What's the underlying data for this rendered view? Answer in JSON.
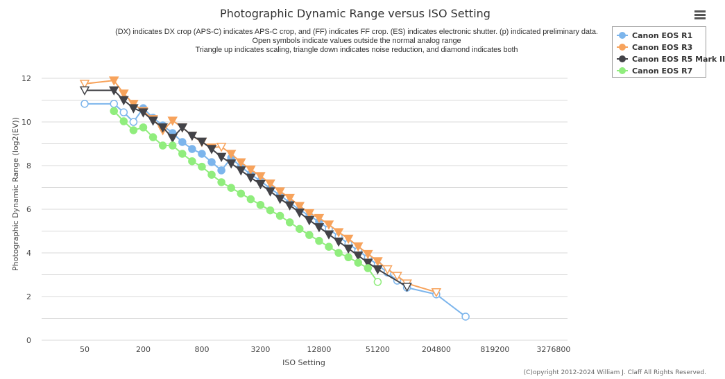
{
  "chart_data": {
    "type": "line",
    "title": "Photographic Dynamic Range versus ISO Setting",
    "subtitle": [
      "(DX) indicates DX crop (APS-C) indicates APS-C crop, and (FF) indicates FF crop. (ES) indicates electronic shutter. (p) indicated preliminary data.",
      "Open symbols indicate values outside the normal analog range",
      "Triangle up indicates scaling, triangle down indicates noise reduction, and diamond indicates both"
    ],
    "xlabel": "ISO Setting",
    "ylabel": "Photographic Dynamic Range (log2(EV))",
    "x_scale": "log2",
    "xlim": [
      25,
      4000000
    ],
    "ylim": [
      0,
      13
    ],
    "x_ticks": [
      "50",
      "200",
      "800",
      "3200",
      "12800",
      "51200",
      "204800",
      "819200",
      "3276800"
    ],
    "y_ticks": [
      "0",
      "2",
      "4",
      "6",
      "8",
      "10",
      "12"
    ],
    "grid": true,
    "legend_position": "top-right",
    "series": [
      {
        "name": "Canon EOS R1",
        "color": "#7cb5ec",
        "marker": "circle",
        "points": [
          [
            50,
            10.83,
            0
          ],
          [
            100,
            10.83,
            0
          ],
          [
            125,
            10.44,
            0
          ],
          [
            160,
            10.0,
            0
          ],
          [
            200,
            10.63,
            1
          ],
          [
            250,
            10.19,
            1
          ],
          [
            320,
            9.84,
            1
          ],
          [
            400,
            9.49,
            1
          ],
          [
            500,
            9.08,
            1
          ],
          [
            640,
            8.76,
            1
          ],
          [
            800,
            8.54,
            1
          ],
          [
            1000,
            8.16,
            1
          ],
          [
            1250,
            7.78,
            1
          ],
          [
            1600,
            8.35,
            1
          ],
          [
            2000,
            7.95,
            1
          ],
          [
            2500,
            7.6,
            1
          ],
          [
            3200,
            7.3,
            1
          ],
          [
            4000,
            6.95,
            1
          ],
          [
            5000,
            6.65,
            1
          ],
          [
            6400,
            6.3,
            1
          ],
          [
            8000,
            5.98,
            1
          ],
          [
            10000,
            5.7,
            1
          ],
          [
            12800,
            5.43,
            1
          ],
          [
            16000,
            5.1,
            0
          ],
          [
            20000,
            4.75,
            0
          ],
          [
            25600,
            4.42,
            0
          ],
          [
            32000,
            4.1,
            0
          ],
          [
            40000,
            3.78,
            0
          ],
          [
            51200,
            3.45,
            0
          ],
          [
            64000,
            3.1,
            0
          ],
          [
            80000,
            2.73,
            0
          ],
          [
            102400,
            2.41,
            0
          ],
          [
            204800,
            2.1,
            0
          ],
          [
            409600,
            1.08,
            0
          ]
        ]
      },
      {
        "name": "Canon EOS R3",
        "color": "#f7a35c",
        "marker": "triangle-down",
        "points": [
          [
            50,
            11.75,
            0
          ],
          [
            100,
            11.9,
            1
          ],
          [
            125,
            11.3,
            1
          ],
          [
            160,
            10.83,
            1
          ],
          [
            200,
            10.5,
            1
          ],
          [
            250,
            10.13,
            1
          ],
          [
            320,
            9.62,
            1
          ],
          [
            400,
            10.06,
            1
          ],
          [
            500,
            9.75,
            1
          ],
          [
            640,
            9.37,
            1
          ],
          [
            800,
            9.08,
            1
          ],
          [
            1000,
            8.83,
            1
          ],
          [
            1250,
            8.86,
            0
          ],
          [
            1600,
            8.54,
            1
          ],
          [
            2000,
            8.15,
            1
          ],
          [
            2500,
            7.82,
            1
          ],
          [
            3200,
            7.52,
            1
          ],
          [
            4000,
            7.18,
            1
          ],
          [
            5000,
            6.82,
            1
          ],
          [
            6400,
            6.52,
            1
          ],
          [
            8000,
            6.15,
            1
          ],
          [
            10000,
            5.82,
            1
          ],
          [
            12800,
            5.6,
            1
          ],
          [
            16000,
            5.3,
            1
          ],
          [
            20000,
            4.95,
            1
          ],
          [
            25600,
            4.65,
            1
          ],
          [
            32000,
            4.3,
            1
          ],
          [
            40000,
            3.95,
            1
          ],
          [
            51200,
            3.62,
            1
          ],
          [
            64000,
            3.25,
            0
          ],
          [
            80000,
            2.95,
            0
          ],
          [
            102400,
            2.6,
            0
          ],
          [
            204800,
            2.2,
            0
          ]
        ]
      },
      {
        "name": "Canon EOS R5 Mark II",
        "color": "#434348",
        "marker": "triangle-down",
        "points": [
          [
            50,
            11.45,
            0
          ],
          [
            100,
            11.45,
            1
          ],
          [
            125,
            11.0,
            1
          ],
          [
            160,
            10.63,
            1
          ],
          [
            200,
            10.44,
            1
          ],
          [
            250,
            10.06,
            1
          ],
          [
            320,
            9.75,
            1
          ],
          [
            400,
            9.27,
            1
          ],
          [
            500,
            9.75,
            1
          ],
          [
            640,
            9.37,
            1
          ],
          [
            800,
            9.1,
            1
          ],
          [
            1000,
            8.76,
            1
          ],
          [
            1250,
            8.4,
            1
          ],
          [
            1600,
            8.1,
            1
          ],
          [
            2000,
            7.78,
            1
          ],
          [
            2500,
            7.45,
            1
          ],
          [
            3200,
            7.15,
            1
          ],
          [
            4000,
            6.82,
            1
          ],
          [
            5000,
            6.48,
            1
          ],
          [
            6400,
            6.18,
            1
          ],
          [
            8000,
            5.85,
            1
          ],
          [
            10000,
            5.5,
            1
          ],
          [
            12800,
            5.18,
            1
          ],
          [
            16000,
            4.85,
            1
          ],
          [
            20000,
            4.52,
            1
          ],
          [
            25600,
            4.2,
            1
          ],
          [
            32000,
            3.88,
            1
          ],
          [
            40000,
            3.55,
            1
          ],
          [
            51200,
            3.25,
            1
          ],
          [
            102400,
            2.45,
            0
          ]
        ]
      },
      {
        "name": "Canon EOS R7",
        "color": "#90ed7d",
        "marker": "circle",
        "points": [
          [
            100,
            10.5,
            1
          ],
          [
            125,
            10.03,
            1
          ],
          [
            160,
            9.62,
            1
          ],
          [
            200,
            9.75,
            1
          ],
          [
            250,
            9.3,
            1
          ],
          [
            320,
            8.92,
            1
          ],
          [
            400,
            8.92,
            1
          ],
          [
            500,
            8.54,
            1
          ],
          [
            640,
            8.2,
            1
          ],
          [
            800,
            7.95,
            1
          ],
          [
            1000,
            7.58,
            1
          ],
          [
            1250,
            7.24,
            1
          ],
          [
            1600,
            6.98,
            1
          ],
          [
            2000,
            6.72,
            1
          ],
          [
            2500,
            6.46,
            1
          ],
          [
            3200,
            6.2,
            1
          ],
          [
            4000,
            5.95,
            1
          ],
          [
            5000,
            5.7,
            1
          ],
          [
            6400,
            5.4,
            1
          ],
          [
            8000,
            5.1,
            1
          ],
          [
            10000,
            4.82,
            1
          ],
          [
            12800,
            4.55,
            1
          ],
          [
            16000,
            4.28,
            1
          ],
          [
            20000,
            4.0,
            1
          ],
          [
            25600,
            3.8,
            1
          ],
          [
            32000,
            3.55,
            1
          ],
          [
            40000,
            3.3,
            1
          ],
          [
            51200,
            2.67,
            0
          ]
        ]
      }
    ]
  },
  "copyright": "(C)opyright 2012-2024 William J. Claff All Rights Reserved."
}
